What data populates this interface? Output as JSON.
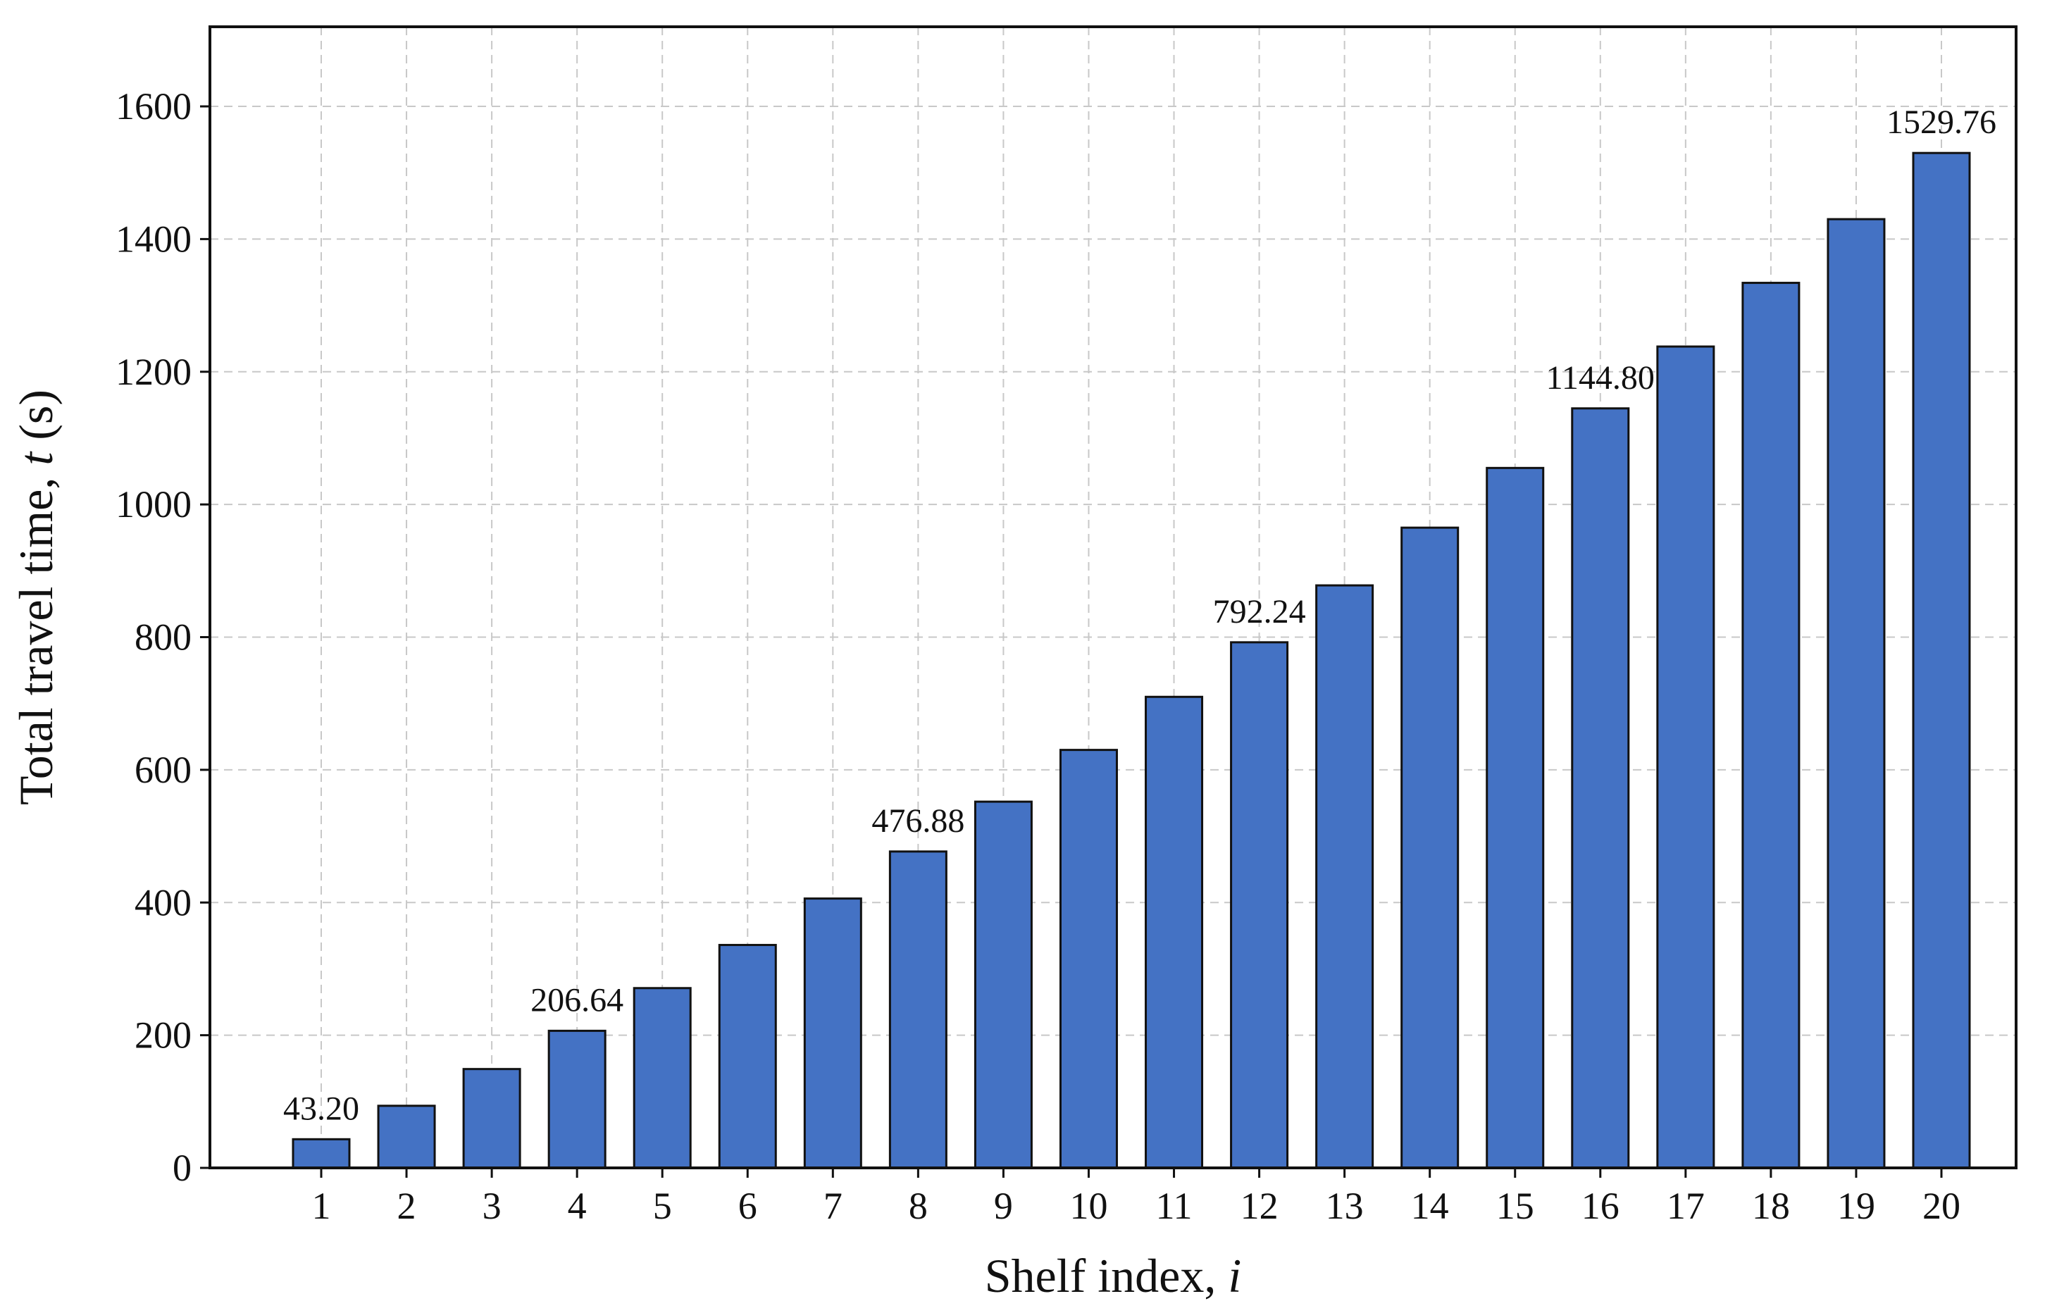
{
  "chart_data": {
    "type": "bar",
    "categories": [
      "1",
      "2",
      "3",
      "4",
      "5",
      "6",
      "7",
      "8",
      "9",
      "10",
      "11",
      "12",
      "13",
      "14",
      "15",
      "16",
      "17",
      "18",
      "19",
      "20"
    ],
    "values": [
      43.2,
      93.6,
      149.0,
      206.64,
      271.0,
      336.0,
      406.0,
      476.88,
      552.0,
      630.0,
      710.0,
      792.24,
      878.0,
      965.0,
      1055.0,
      1144.8,
      1238.0,
      1334.0,
      1430.0,
      1529.76
    ],
    "annotated": {
      "0": "43.20",
      "3": "206.64",
      "7": "476.88",
      "11": "792.24",
      "15": "1144.80",
      "19": "1529.76"
    },
    "xlabel_prefix": "Shelf index, ",
    "xlabel_var": "i",
    "ylabel_prefix": "Total travel time, ",
    "ylabel_var": "t",
    "ylabel_suffix": " (s)",
    "ylim": [
      0,
      1720
    ],
    "yticks": [
      0,
      200,
      400,
      600,
      800,
      1000,
      1200,
      1400,
      1600
    ],
    "grid": true,
    "bar_color": "#4472c4",
    "edge_color": "#111111"
  }
}
